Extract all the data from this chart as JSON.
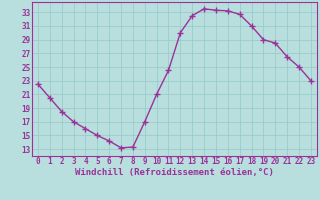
{
  "x": [
    0,
    1,
    2,
    3,
    4,
    5,
    6,
    7,
    8,
    9,
    10,
    11,
    12,
    13,
    14,
    15,
    16,
    17,
    18,
    19,
    20,
    21,
    22,
    23
  ],
  "y": [
    22.5,
    20.5,
    18.5,
    17.0,
    16.0,
    15.0,
    14.2,
    13.2,
    13.3,
    17.0,
    21.0,
    24.5,
    30.0,
    32.5,
    33.5,
    33.3,
    33.2,
    32.7,
    31.0,
    29.0,
    28.5,
    26.5,
    25.0,
    23.0
  ],
  "line_color": "#993399",
  "marker": "+",
  "marker_size": 4,
  "marker_linewidth": 1.0,
  "bg_color": "#b8dede",
  "grid_color": "#99cccc",
  "xlabel": "Windchill (Refroidissement éolien,°C)",
  "xlim": [
    -0.5,
    23.5
  ],
  "ylim": [
    12,
    34.5
  ],
  "yticks": [
    13,
    15,
    17,
    19,
    21,
    23,
    25,
    27,
    29,
    31,
    33
  ],
  "xticks": [
    0,
    1,
    2,
    3,
    4,
    5,
    6,
    7,
    8,
    9,
    10,
    11,
    12,
    13,
    14,
    15,
    16,
    17,
    18,
    19,
    20,
    21,
    22,
    23
  ],
  "tick_color": "#993399",
  "label_color": "#993399",
  "font_size_tick": 5.5,
  "font_size_label": 6.5,
  "linewidth": 1.0
}
